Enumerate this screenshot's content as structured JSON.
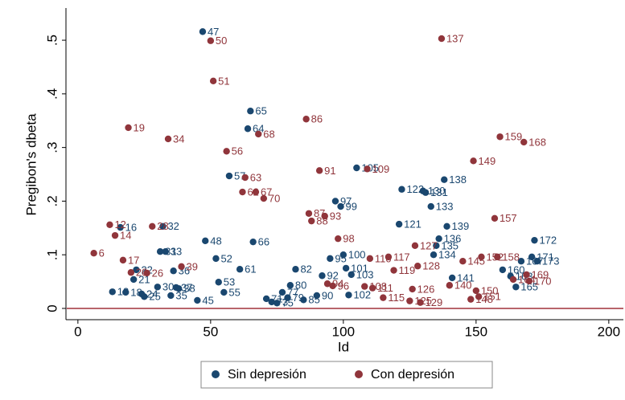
{
  "chart_data": {
    "type": "scatter",
    "xlabel": "Id",
    "ylabel": "Pregibon's dbeta",
    "xlim": [
      -4.5,
      205.5
    ],
    "ylim": [
      -0.021,
      0.56
    ],
    "xticks": [
      0,
      50,
      100,
      150,
      200
    ],
    "yticks": [
      0,
      {
        "value": 0.1,
        "label": ".1"
      },
      {
        "value": 0.2,
        "label": ".2"
      },
      {
        "value": 0.3,
        "label": ".3"
      },
      {
        "value": 0.4,
        "label": ".4"
      },
      {
        "value": 0.5,
        "label": ".5"
      }
    ],
    "reference_line": {
      "y": 0,
      "color": "#a0303a"
    },
    "legend": "bottom",
    "series": [
      {
        "name": "Sin depresión",
        "color": "#1a476f",
        "x": [
          47,
          65,
          64,
          57,
          48,
          66,
          52,
          53,
          55,
          45,
          61,
          16,
          32,
          31,
          33,
          36,
          22,
          21,
          13,
          18,
          24,
          25,
          30,
          37,
          38,
          35,
          71,
          73,
          75,
          77,
          79,
          82,
          80,
          90,
          85,
          95,
          92,
          97,
          99,
          100,
          101,
          103,
          102,
          105,
          122,
          130,
          131,
          138,
          133,
          139,
          121,
          136,
          135,
          134,
          141,
          160,
          163,
          165,
          167,
          172,
          171,
          173
        ],
        "y": [
          0.516,
          0.368,
          0.335,
          0.247,
          0.126,
          0.124,
          0.093,
          0.049,
          0.03,
          0.015,
          0.073,
          0.151,
          0.153,
          0.106,
          0.106,
          0.07,
          0.072,
          0.054,
          0.031,
          0.03,
          0.027,
          0.022,
          0.04,
          0.039,
          0.037,
          0.024,
          0.018,
          0.012,
          0.01,
          0.03,
          0.02,
          0.073,
          0.043,
          0.024,
          0.016,
          0.093,
          0.061,
          0.2,
          0.19,
          0.1,
          0.075,
          0.063,
          0.025,
          0.262,
          0.222,
          0.219,
          0.216,
          0.24,
          0.19,
          0.153,
          0.157,
          0.13,
          0.117,
          0.1,
          0.057,
          0.072,
          0.06,
          0.04,
          0.088,
          0.127,
          0.096,
          0.088
        ]
      },
      {
        "name": "Con depresión",
        "color": "#90353b",
        "x": [
          50,
          51,
          137,
          86,
          19,
          34,
          68,
          56,
          159,
          168,
          149,
          91,
          109,
          63,
          62,
          67,
          70,
          87,
          93,
          88,
          157,
          98,
          12,
          14,
          28,
          6,
          17,
          39,
          26,
          20,
          110,
          117,
          128,
          119,
          127,
          145,
          140,
          150,
          151,
          148,
          126,
          125,
          129,
          115,
          111,
          108,
          96,
          94,
          152,
          158,
          169,
          170,
          164
        ],
        "y": [
          0.499,
          0.424,
          0.503,
          0.353,
          0.337,
          0.316,
          0.325,
          0.293,
          0.32,
          0.31,
          0.275,
          0.257,
          0.26,
          0.244,
          0.217,
          0.217,
          0.205,
          0.177,
          0.172,
          0.163,
          0.168,
          0.13,
          0.156,
          0.136,
          0.153,
          0.103,
          0.09,
          0.078,
          0.066,
          0.067,
          0.093,
          0.096,
          0.079,
          0.071,
          0.117,
          0.088,
          0.043,
          0.033,
          0.022,
          0.017,
          0.036,
          0.014,
          0.011,
          0.02,
          0.038,
          0.041,
          0.042,
          0.046,
          0.096,
          0.096,
          0.063,
          0.051,
          0.054
        ]
      }
    ]
  }
}
